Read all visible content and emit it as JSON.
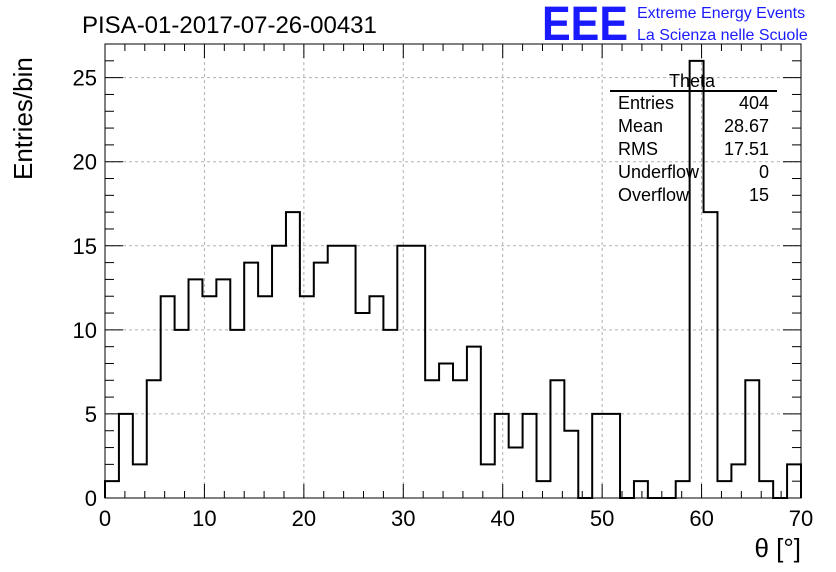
{
  "chart_data": {
    "type": "histogram",
    "title": "PISA-01-2017-07-26-00431",
    "xlabel": "θ [°]",
    "ylabel": "Entries/bin",
    "xlim": [
      0,
      70
    ],
    "ylim": [
      0,
      27
    ],
    "bin_width": 1.4,
    "bin_low_edges": [
      0.0,
      1.4,
      2.8,
      4.2,
      5.6,
      7.0,
      8.4,
      9.8,
      11.2,
      12.6,
      14.0,
      15.4,
      16.8,
      18.2,
      19.6,
      21.0,
      22.4,
      23.8,
      25.2,
      26.6,
      28.0,
      29.4,
      30.8,
      32.2,
      33.6,
      35.0,
      36.4,
      37.8,
      39.2,
      40.6,
      42.0,
      43.4,
      44.8,
      46.2,
      47.6,
      49.0,
      50.4,
      51.8,
      53.2,
      54.6,
      56.0,
      57.4,
      58.8,
      60.2,
      61.6,
      63.0,
      64.4,
      65.8,
      67.2,
      68.6
    ],
    "values": [
      1,
      5,
      2,
      7,
      12,
      10,
      13,
      12,
      13,
      10,
      14,
      12,
      15,
      17,
      12,
      14,
      15,
      15,
      11,
      12,
      10,
      15,
      15,
      7,
      8,
      7,
      9,
      2,
      5,
      3,
      5,
      1,
      7,
      4,
      0,
      5,
      5,
      0,
      1,
      0,
      0,
      1,
      26,
      17,
      1,
      2,
      7,
      1,
      0,
      2
    ],
    "xticks": [
      0,
      10,
      20,
      30,
      40,
      50,
      60,
      70
    ],
    "yticks": [
      0,
      5,
      10,
      15,
      20,
      25
    ],
    "grid": true,
    "stats": {
      "name": "Theta",
      "rows": [
        {
          "label": "Entries",
          "value": "404"
        },
        {
          "label": "Mean",
          "value": "28.67"
        },
        {
          "label": "RMS",
          "value": "17.51"
        },
        {
          "label": "Underflow",
          "value": "0"
        },
        {
          "label": "Overflow",
          "value": "15"
        }
      ]
    },
    "colors": {
      "line": "#000000",
      "grid": "#b0b0b0",
      "logo": "#1a1aff"
    }
  },
  "logo": {
    "mark": "EEE",
    "line1": "Extreme Energy Events",
    "line2": "La Scienza nelle Scuole"
  }
}
